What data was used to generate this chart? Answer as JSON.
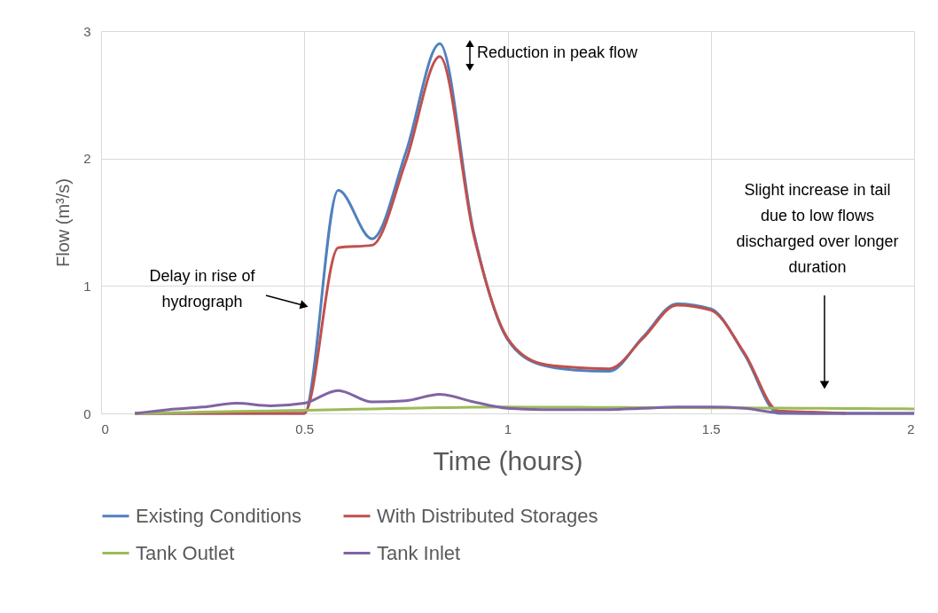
{
  "chart_data": {
    "type": "line",
    "xlabel": "Time (hours)",
    "ylabel": "Flow (m³/s)",
    "x": [
      0.0833,
      0.1667,
      0.25,
      0.3333,
      0.4167,
      0.5,
      0.5833,
      0.6667,
      0.75,
      0.8333,
      0.9167,
      1.0,
      1.0833,
      1.1667,
      1.25,
      1.3333,
      1.4167,
      1.5,
      1.5833,
      1.6667,
      1.75,
      1.8333,
      1.9167,
      2.0
    ],
    "series": [
      {
        "name": "Existing Conditions",
        "color": "#4f81bd",
        "values": [
          0,
          0,
          0,
          0,
          0,
          0,
          1.75,
          1.37,
          2.05,
          2.9,
          1.42,
          0.58,
          0.38,
          0.34,
          0.33,
          0.6,
          0.86,
          0.82,
          0.46,
          0,
          0,
          0,
          0,
          0
        ]
      },
      {
        "name": "With Distributed Storages",
        "color": "#c0504d",
        "values": [
          0,
          0,
          0,
          0,
          0,
          0,
          1.3,
          1.32,
          1.98,
          2.8,
          1.4,
          0.59,
          0.39,
          0.36,
          0.35,
          0.59,
          0.85,
          0.81,
          0.47,
          0.02,
          0.01,
          0,
          null,
          null
        ]
      },
      {
        "name": "Tank Outlet",
        "color": "#9bbb59",
        "values": [
          0,
          0.005,
          0.01,
          0.015,
          0.02,
          0.025,
          0.03,
          0.035,
          0.04,
          0.045,
          0.048,
          0.05,
          0.049,
          0.048,
          0.047,
          0.046,
          0.045,
          0.044,
          0.043,
          0.042,
          0.04,
          0.038,
          0.037,
          0.035
        ]
      },
      {
        "name": "Tank Inlet",
        "color": "#8064a2",
        "values": [
          0,
          0.03,
          0.05,
          0.08,
          0.06,
          0.08,
          0.18,
          0.09,
          0.1,
          0.15,
          0.09,
          0.04,
          0.03,
          0.03,
          0.03,
          0.04,
          0.05,
          0.05,
          0.04,
          0.005,
          0,
          0,
          0,
          0
        ]
      }
    ],
    "xlim": [
      0,
      2
    ],
    "xticks": [
      0,
      0.5,
      1,
      1.5,
      2
    ],
    "ylim": [
      0,
      3
    ],
    "yticks": [
      0,
      1,
      2,
      3
    ],
    "grid": true,
    "legend": "bottom",
    "annotations": [
      "Reduction in peak flow",
      "Delay in rise of\nhydrograph",
      "Slight increase in tail\ndue to low flows\ndischarged over longer\nduration"
    ]
  }
}
